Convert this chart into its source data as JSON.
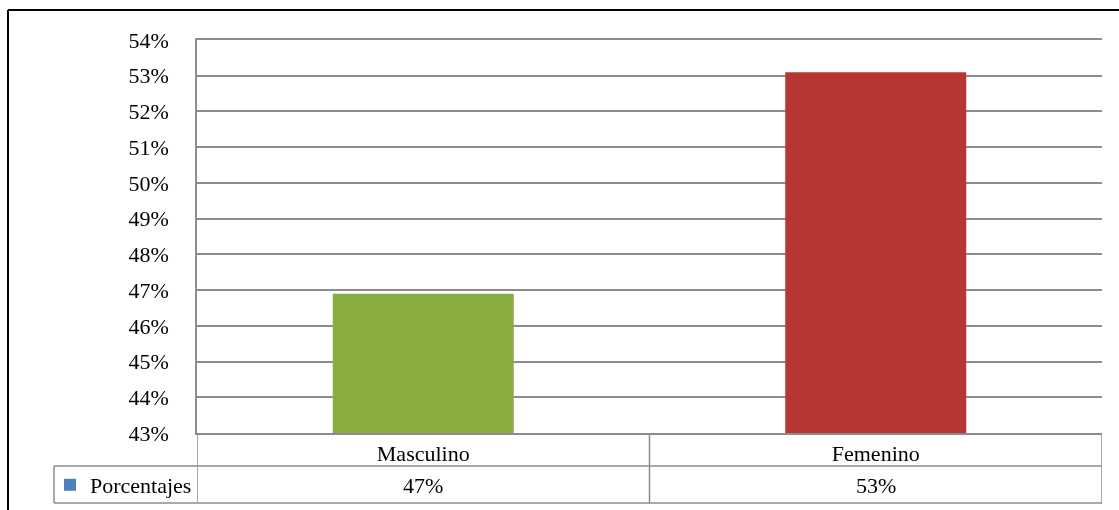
{
  "chart_data": {
    "type": "bar",
    "categories": [
      "Masculino",
      "Femenino"
    ],
    "series": [
      {
        "name": "Porcentajes",
        "color": "#4f81bd",
        "colors": [
          "#8aad42",
          "#b53633"
        ],
        "values": [
          46.9,
          53.1
        ],
        "value_labels": [
          "47%",
          "53%"
        ]
      }
    ],
    "ylim": [
      43,
      54
    ],
    "yticks": [
      {
        "value": 43,
        "label": "43%"
      },
      {
        "value": 44,
        "label": "44%"
      },
      {
        "value": 45,
        "label": "45%"
      },
      {
        "value": 46,
        "label": "46%"
      },
      {
        "value": 47,
        "label": "47%"
      },
      {
        "value": 48,
        "label": "48%"
      },
      {
        "value": 49,
        "label": "49%"
      },
      {
        "value": 50,
        "label": "50%"
      },
      {
        "value": 51,
        "label": "51%"
      },
      {
        "value": 52,
        "label": "52%"
      },
      {
        "value": 53,
        "label": "53%"
      },
      {
        "value": 54,
        "label": "54%"
      }
    ],
    "grid": "y",
    "legend": "bottom left"
  }
}
